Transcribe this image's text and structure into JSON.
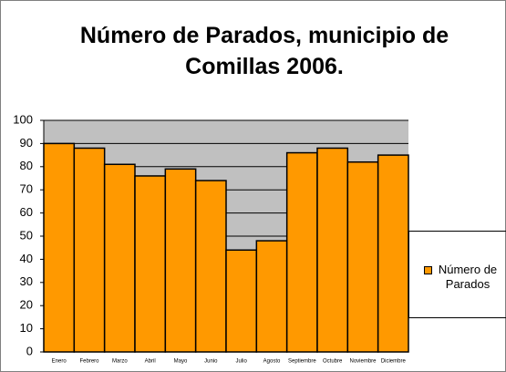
{
  "chart_data": {
    "type": "bar",
    "title": "Número de Parados, municipio de Comillas 2006.",
    "categories": [
      "Enero",
      "Febrero",
      "Marzo",
      "Abril",
      "Mayo",
      "Junio",
      "Julio",
      "Agosto",
      "Septiembre",
      "Octubre",
      "Noviembre",
      "Diciembre"
    ],
    "series": [
      {
        "name": "Número de Parados",
        "color": "#ff9900",
        "values": [
          90,
          88,
          81,
          76,
          79,
          74,
          44,
          48,
          86,
          88,
          82,
          85
        ]
      }
    ],
    "ylim": [
      0,
      100
    ],
    "yticks": [
      0,
      10,
      20,
      30,
      40,
      50,
      60,
      70,
      80,
      90,
      100
    ],
    "grid": true,
    "legend": "right"
  }
}
